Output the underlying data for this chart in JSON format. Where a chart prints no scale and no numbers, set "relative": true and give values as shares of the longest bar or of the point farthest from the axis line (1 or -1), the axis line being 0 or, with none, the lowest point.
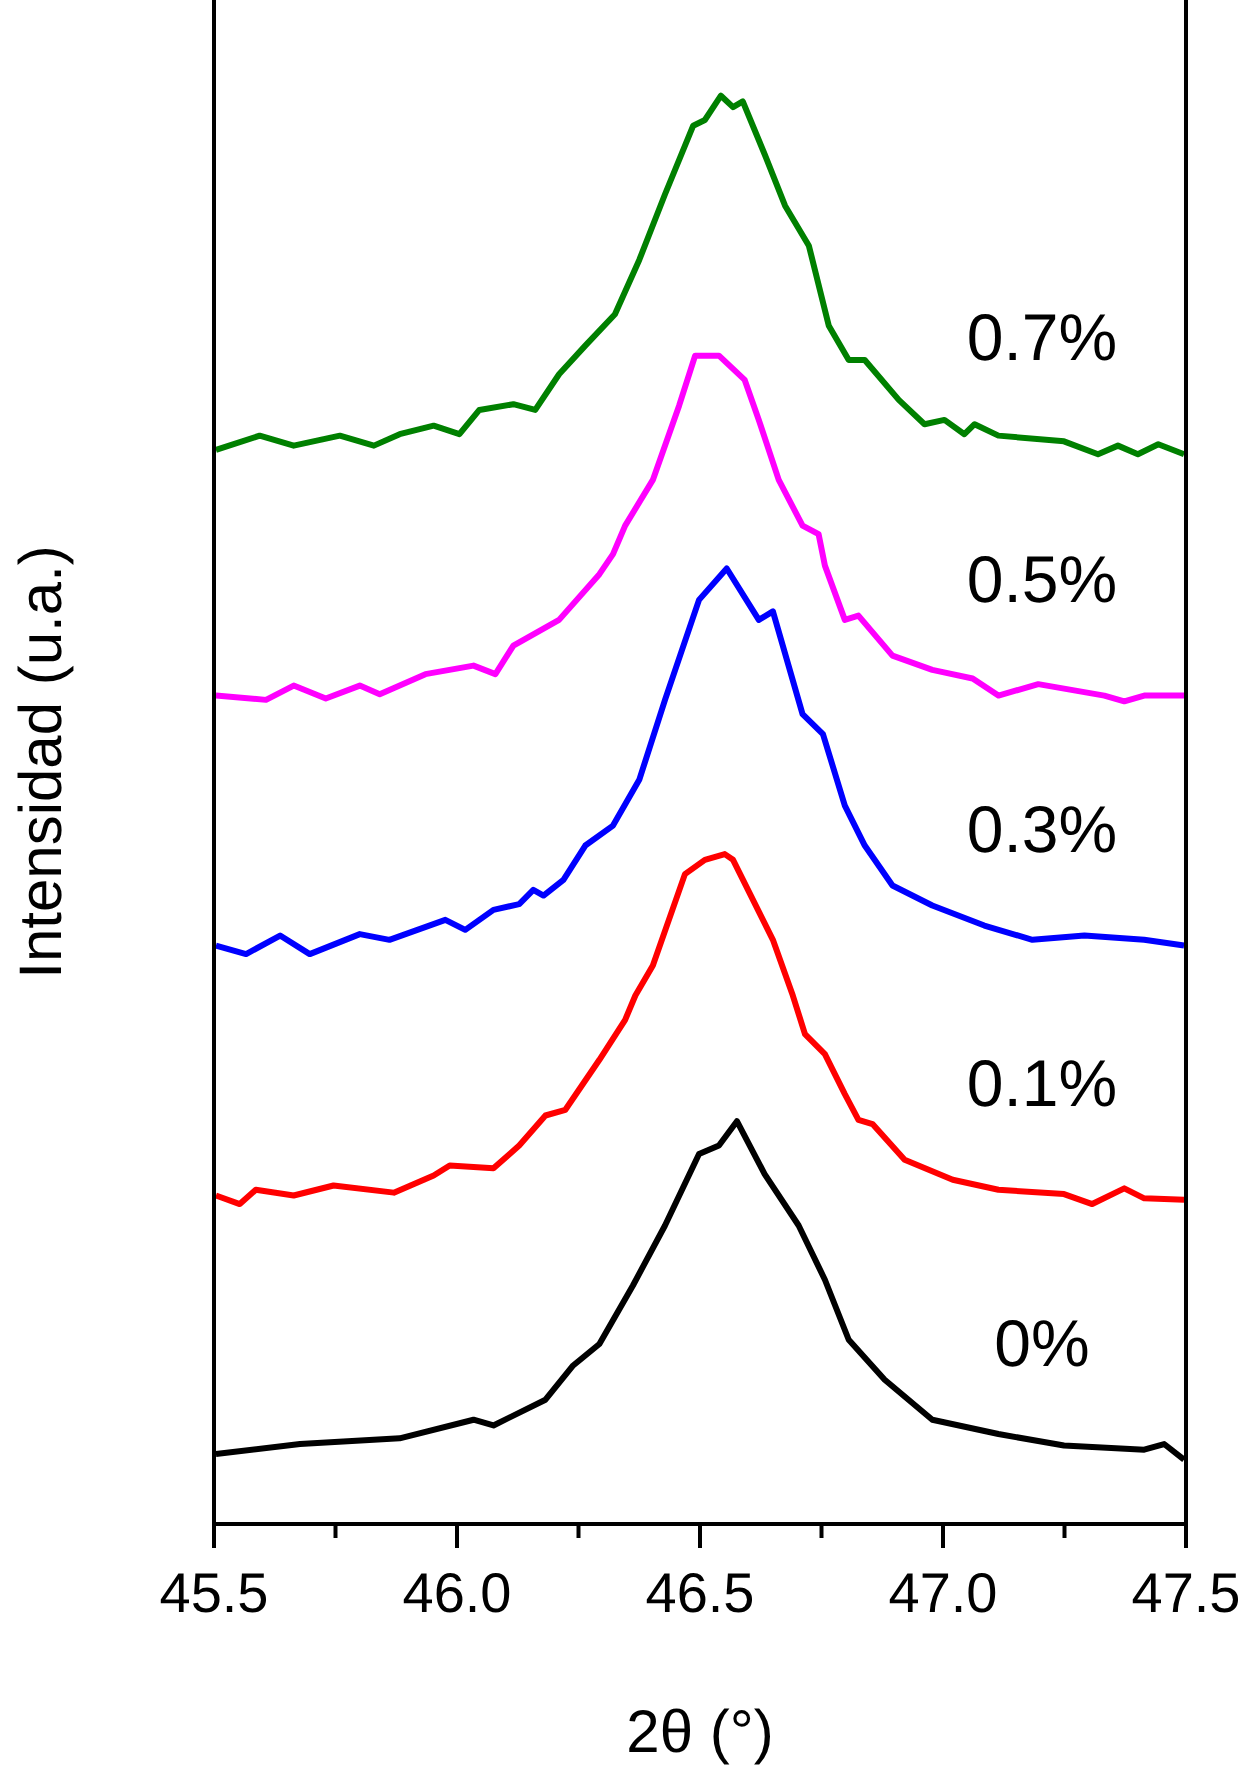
{
  "chart_data": {
    "type": "line",
    "relative": true,
    "xlabel": "2θ (°)",
    "ylabel": "Intensidad (u.a.)",
    "xlim": [
      45.5,
      47.5
    ],
    "xticks": [
      45.5,
      {
        "value": 45.75,
        "label": null
      },
      {
        "value": 46,
        "label": "46.0"
      },
      {
        "value": 46.25,
        "label": null
      },
      46.5,
      {
        "value": 46.75,
        "label": null
      },
      {
        "value": 47,
        "label": "47.0"
      },
      {
        "value": 47.25,
        "label": null
      },
      47.5
    ],
    "marker": "none",
    "line_style": "solid",
    "series": [
      {
        "name": "0%",
        "color": "#000000",
        "x": [
          45.504,
          45.677,
          45.882,
          46.034,
          46.075,
          46.182,
          46.239,
          46.293,
          46.362,
          46.428,
          46.498,
          46.539,
          46.576,
          46.633,
          46.703,
          46.757,
          46.806,
          46.88,
          46.978,
          47.114,
          47.249,
          47.414,
          47.455,
          47.496
        ],
        "values": [
          0.049,
          0.056,
          0.06,
          0.073,
          0.069,
          0.087,
          0.111,
          0.126,
          0.167,
          0.209,
          0.259,
          0.265,
          0.282,
          0.245,
          0.209,
          0.171,
          0.129,
          0.101,
          0.073,
          0.063,
          0.055,
          0.052,
          0.056,
          0.045
        ]
      },
      {
        "name": "0.1%",
        "color": "#ff0000",
        "x": [
          45.504,
          45.553,
          45.586,
          45.664,
          45.746,
          45.87,
          45.952,
          45.985,
          46.075,
          46.128,
          46.182,
          46.223,
          46.293,
          46.346,
          46.367,
          46.403,
          46.469,
          46.51,
          46.551,
          46.568,
          46.65,
          46.691,
          46.716,
          46.757,
          46.798,
          46.826,
          46.855,
          46.921,
          47.02,
          47.114,
          47.249,
          47.307,
          47.373,
          47.414,
          47.496
        ],
        "values": [
          0.23,
          0.224,
          0.234,
          0.23,
          0.237,
          0.232,
          0.244,
          0.251,
          0.249,
          0.265,
          0.286,
          0.29,
          0.325,
          0.353,
          0.37,
          0.391,
          0.455,
          0.465,
          0.469,
          0.465,
          0.409,
          0.37,
          0.343,
          0.329,
          0.301,
          0.283,
          0.28,
          0.255,
          0.241,
          0.234,
          0.231,
          0.224,
          0.235,
          0.228,
          0.227
        ]
      },
      {
        "name": "0.3%",
        "color": "#0000ff",
        "x": [
          45.504,
          45.566,
          45.636,
          45.697,
          45.8,
          45.861,
          45.976,
          46.017,
          46.075,
          46.128,
          46.157,
          46.178,
          46.219,
          46.264,
          46.321,
          46.375,
          46.428,
          46.498,
          46.555,
          46.621,
          46.65,
          46.711,
          46.753,
          46.798,
          46.839,
          46.896,
          46.978,
          47.085,
          47.184,
          47.291,
          47.414,
          47.496
        ],
        "values": [
          0.405,
          0.399,
          0.412,
          0.399,
          0.413,
          0.409,
          0.423,
          0.416,
          0.43,
          0.434,
          0.444,
          0.44,
          0.451,
          0.475,
          0.489,
          0.521,
          0.577,
          0.647,
          0.669,
          0.633,
          0.639,
          0.567,
          0.553,
          0.503,
          0.475,
          0.447,
          0.433,
          0.419,
          0.409,
          0.412,
          0.409,
          0.405
        ]
      },
      {
        "name": "0.5%",
        "color": "#ff00ff",
        "x": [
          45.504,
          45.607,
          45.664,
          45.73,
          45.8,
          45.841,
          45.935,
          46.034,
          46.079,
          46.116,
          46.21,
          46.293,
          46.321,
          46.346,
          46.403,
          46.457,
          46.49,
          46.539,
          46.592,
          46.621,
          46.662,
          46.711,
          46.744,
          46.757,
          46.798,
          46.826,
          46.896,
          46.978,
          47.061,
          47.114,
          47.196,
          47.332,
          47.373,
          47.414,
          47.496
        ],
        "values": [
          0.58,
          0.577,
          0.587,
          0.578,
          0.587,
          0.581,
          0.595,
          0.601,
          0.595,
          0.615,
          0.633,
          0.665,
          0.679,
          0.699,
          0.731,
          0.783,
          0.818,
          0.818,
          0.801,
          0.773,
          0.731,
          0.699,
          0.693,
          0.671,
          0.633,
          0.636,
          0.608,
          0.598,
          0.592,
          0.58,
          0.588,
          0.58,
          0.576,
          0.58,
          0.58
        ]
      },
      {
        "name": "0.7%",
        "color": "#008000",
        "x": [
          45.504,
          45.594,
          45.664,
          45.759,
          45.829,
          45.882,
          45.952,
          46.005,
          46.046,
          46.116,
          46.161,
          46.21,
          46.264,
          46.325,
          46.375,
          46.428,
          46.486,
          46.51,
          46.543,
          46.568,
          46.588,
          46.633,
          46.675,
          46.724,
          46.765,
          46.806,
          46.839,
          46.909,
          46.962,
          47.003,
          47.044,
          47.065,
          47.114,
          47.249,
          47.319,
          47.36,
          47.401,
          47.443,
          47.496
        ],
        "values": [
          0.752,
          0.762,
          0.755,
          0.762,
          0.755,
          0.763,
          0.769,
          0.763,
          0.78,
          0.784,
          0.78,
          0.805,
          0.825,
          0.847,
          0.885,
          0.931,
          0.979,
          0.983,
          1,
          0.992,
          0.996,
          0.959,
          0.923,
          0.895,
          0.839,
          0.815,
          0.815,
          0.787,
          0.77,
          0.773,
          0.763,
          0.77,
          0.762,
          0.758,
          0.749,
          0.755,
          0.749,
          0.756,
          0.749
        ]
      }
    ]
  }
}
